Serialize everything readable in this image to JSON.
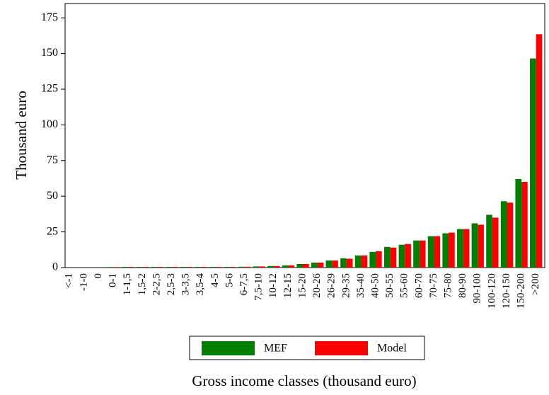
{
  "chart_data": {
    "type": "bar",
    "xlabel": "Gross income classes (thousand euro)",
    "ylabel": "Thousand euro",
    "categories": [
      "<-1",
      "-1-0",
      "0",
      "0-1",
      "1-1,5",
      "1,5-2",
      "2-2,5",
      "2,5-3",
      "3-3,5",
      "3,5-4",
      "4-5",
      "5-6",
      "6-7,5",
      "7,5-10",
      "10-12",
      "12-15",
      "15-20",
      "20-26",
      "26-29",
      "29-35",
      "35-40",
      "40-50",
      "50-55",
      "55-60",
      "60-70",
      "70-75",
      "75-80",
      "80-90",
      "90-100",
      "100-120",
      "120-150",
      "150-200",
      ">200"
    ],
    "series": [
      {
        "name": "MEF",
        "color": "#008000",
        "values": [
          0,
          0,
          0,
          0.4,
          0.5,
          0.5,
          0.5,
          0.5,
          0.5,
          0.5,
          0.5,
          0.5,
          0.6,
          0.8,
          1.1,
          1.5,
          2.5,
          3.5,
          5,
          6.5,
          8.5,
          11,
          14.5,
          16,
          19,
          22,
          24,
          27,
          31,
          37,
          46.5,
          62,
          146.5
        ]
      },
      {
        "name": "Model",
        "color": "#ff0000",
        "values": [
          0,
          0,
          0,
          0.4,
          0.5,
          0.5,
          0.5,
          0.5,
          0.5,
          0.5,
          0.5,
          0.5,
          0.6,
          0.8,
          1.1,
          1.5,
          2.5,
          3.5,
          5,
          6.2,
          8.5,
          11.5,
          14,
          16.5,
          19,
          22,
          24.5,
          27,
          30,
          35,
          45.5,
          60,
          163.5
        ]
      }
    ],
    "ylim": [
      0,
      185
    ],
    "yticks": [
      0,
      25,
      50,
      75,
      100,
      125,
      150,
      175
    ],
    "grid": false,
    "legend": "bottom"
  }
}
